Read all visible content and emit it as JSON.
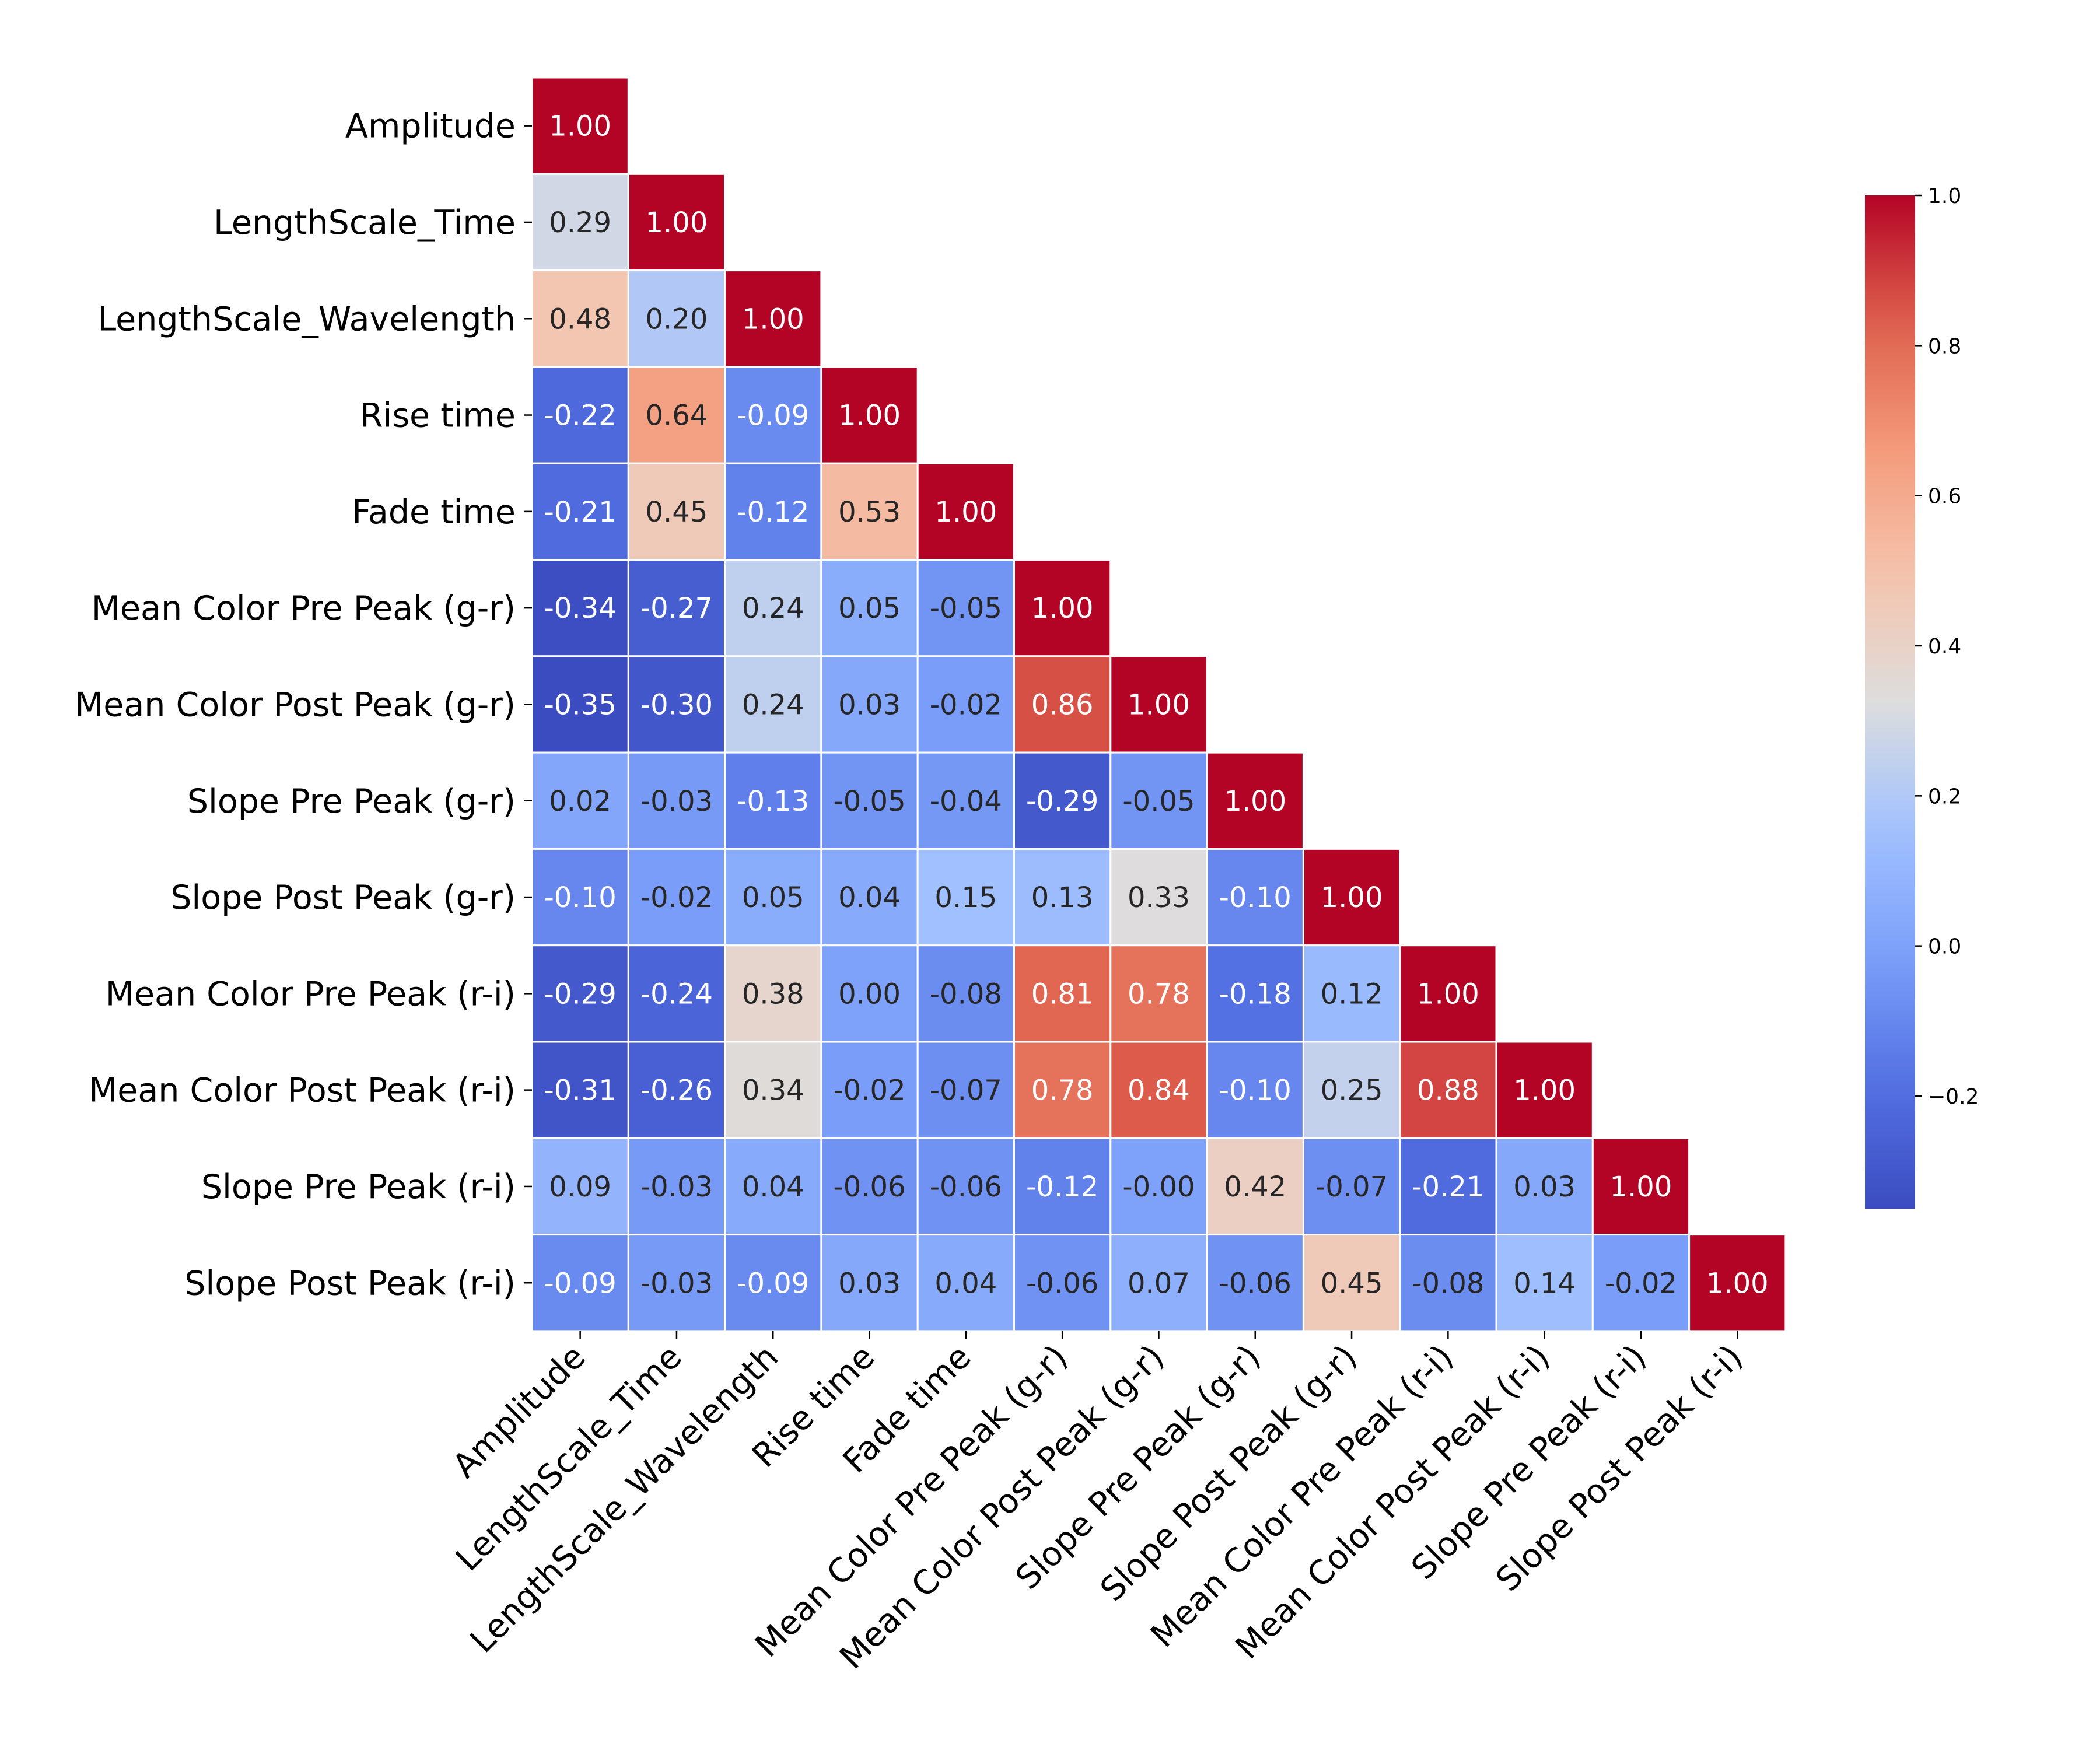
{
  "chart_data": {
    "type": "heatmap",
    "title": "",
    "xlabel": "",
    "ylabel": "",
    "annotation_format": "2 decimals",
    "mask": "upper triangle (lower triangle with diagonal shown)",
    "colormap": "coolwarm",
    "variables": [
      "Amplitude",
      "LengthScale_Time",
      "LengthScale_Wavelength",
      "Rise time",
      "Fade time",
      "Mean Color Pre Peak (g-r)",
      "Mean Color Post Peak (g-r)",
      "Slope Pre Peak (g-r)",
      "Slope Post Peak (g-r)",
      "Mean Color Pre Peak (r-i)",
      "Mean Color Post Peak (r-i)",
      "Slope Pre Peak (r-i)",
      "Slope Post Peak (r-i)"
    ],
    "values": [
      [
        "1.00"
      ],
      [
        "0.29",
        "1.00"
      ],
      [
        "0.48",
        "0.20",
        "1.00"
      ],
      [
        "-0.22",
        "0.64",
        "-0.09",
        "1.00"
      ],
      [
        "-0.21",
        "0.45",
        "-0.12",
        "0.53",
        "1.00"
      ],
      [
        "-0.34",
        "-0.27",
        "0.24",
        "0.05",
        "-0.05",
        "1.00"
      ],
      [
        "-0.35",
        "-0.30",
        "0.24",
        "0.03",
        "-0.02",
        "0.86",
        "1.00"
      ],
      [
        "0.02",
        "-0.03",
        "-0.13",
        "-0.05",
        "-0.04",
        "-0.29",
        "-0.05",
        "1.00"
      ],
      [
        "-0.10",
        "-0.02",
        "0.05",
        "0.04",
        "0.15",
        "0.13",
        "0.33",
        "-0.10",
        "1.00"
      ],
      [
        "-0.29",
        "-0.24",
        "0.38",
        "0.00",
        "-0.08",
        "0.81",
        "0.78",
        "-0.18",
        "0.12",
        "1.00"
      ],
      [
        "-0.31",
        "-0.26",
        "0.34",
        "-0.02",
        "-0.07",
        "0.78",
        "0.84",
        "-0.10",
        "0.25",
        "0.88",
        "1.00"
      ],
      [
        "0.09",
        "-0.03",
        "0.04",
        "-0.06",
        "-0.06",
        "-0.12",
        "-0.00",
        "0.42",
        "-0.07",
        "-0.21",
        "0.03",
        "1.00"
      ],
      [
        "-0.09",
        "-0.03",
        "-0.09",
        "0.03",
        "0.04",
        "-0.06",
        "0.07",
        "-0.06",
        "0.45",
        "-0.08",
        "0.14",
        "-0.02",
        "1.00"
      ]
    ],
    "colorbar": {
      "range": [
        -0.35,
        1.0
      ],
      "ticks": [
        -0.2,
        0.0,
        0.2,
        0.4,
        0.6,
        0.8,
        1.0
      ],
      "tick_labels": [
        "−0.2",
        "0.0",
        "0.2",
        "0.4",
        "0.6",
        "0.8",
        "1.0"
      ]
    },
    "colors": {
      "low": "#3b4cc0",
      "mid": "#dddddd",
      "high": "#b40426",
      "grid_line": "#ffffff",
      "text_dark": "#262626",
      "text_light": "#ffffff"
    }
  }
}
